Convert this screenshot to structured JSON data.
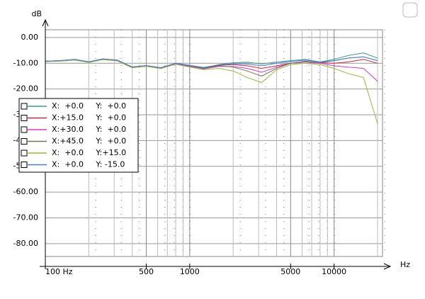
{
  "chart_data": {
    "type": "line",
    "y_label": "dB",
    "x_label": "Hz",
    "xscale": "log",
    "grid": true,
    "xlim": [
      100,
      20000
    ],
    "ylim": [
      -85,
      3
    ],
    "xticks": [
      {
        "value": 100,
        "label": "100 Hz"
      },
      500,
      1000,
      5000,
      10000
    ],
    "xminor": [
      200,
      300,
      400,
      600,
      700,
      800,
      900,
      2000,
      3000,
      4000,
      6000,
      7000,
      8000,
      9000,
      20000
    ],
    "yticks": [
      {
        "value": 0,
        "label": "0.00"
      },
      {
        "value": -10,
        "label": "-10.00"
      },
      {
        "value": -20,
        "label": "-20.00"
      },
      {
        "value": -30,
        "label": "-30.00"
      },
      {
        "value": -40,
        "label": "-40.00"
      },
      {
        "value": -50,
        "label": "-50.00"
      },
      {
        "value": -60,
        "label": "-60.00"
      },
      {
        "value": -70,
        "label": "-70.00"
      },
      {
        "value": -80,
        "label": "-80.00"
      }
    ],
    "x": [
      100,
      125,
      160,
      200,
      250,
      315,
      400,
      500,
      630,
      800,
      1000,
      1250,
      1600,
      2000,
      2500,
      3150,
      4000,
      5000,
      6300,
      8000,
      10000,
      12500,
      16000,
      20000
    ],
    "series": [
      {
        "name": "X:  +0.0     Y:  +0.0",
        "color": "#3c9a96",
        "values": [
          -9.2,
          -9,
          -8.5,
          -9.5,
          -8.3,
          -8.8,
          -11.5,
          -11,
          -11.8,
          -10,
          -10.8,
          -11.8,
          -10.5,
          -9.8,
          -9.6,
          -10.3,
          -9.5,
          -9,
          -8.5,
          -9.5,
          -8.5,
          -7,
          -6,
          -8
        ]
      },
      {
        "name": "X:+15.0     Y:  +0.0",
        "color": "#c8283c",
        "values": [
          -9.2,
          -9,
          -8.6,
          -9.5,
          -8.4,
          -8.9,
          -11.6,
          -11,
          -11.9,
          -10.1,
          -11,
          -12,
          -10.8,
          -10.5,
          -11,
          -12,
          -11,
          -10,
          -9.3,
          -9.8,
          -10,
          -9.5,
          -8.5,
          -10
        ]
      },
      {
        "name": "X:+30.0     Y:  +0.0",
        "color": "#d838c8",
        "values": [
          -9.3,
          -9.1,
          -8.7,
          -9.6,
          -8.5,
          -9,
          -11.7,
          -11.1,
          -12,
          -10.2,
          -11.2,
          -12.2,
          -11.2,
          -11.3,
          -12,
          -13.5,
          -11.5,
          -10,
          -9.5,
          -10,
          -11,
          -11.5,
          -12,
          -17
        ]
      },
      {
        "name": "X:+45.0     Y:  +0.0",
        "color": "#6a7a52",
        "values": [
          -9.2,
          -9,
          -8.6,
          -9.5,
          -8.4,
          -8.8,
          -11.5,
          -11,
          -11.8,
          -10,
          -11,
          -12,
          -11,
          -11.5,
          -13,
          -15,
          -12,
          -10,
          -9.2,
          -9.8,
          -9,
          -8,
          -7.5,
          -9
        ]
      },
      {
        "name": "X:  +0.0     Y:+15.0",
        "color": "#9ab83c",
        "values": [
          -9.4,
          -9.2,
          -8.8,
          -9.7,
          -8.6,
          -9.1,
          -11.8,
          -11.2,
          -12.1,
          -10.4,
          -11.5,
          -12.5,
          -12,
          -13,
          -15.5,
          -17.5,
          -12.5,
          -10.5,
          -10,
          -10.5,
          -12,
          -14,
          -15.5,
          -33.5
        ]
      },
      {
        "name": "X:  +0.0     Y: -15.0",
        "color": "#4a7ad8",
        "values": [
          -9.2,
          -9,
          -8.5,
          -9.4,
          -8.3,
          -8.8,
          -11.4,
          -10.9,
          -11.7,
          -10,
          -10.8,
          -11.6,
          -10.6,
          -10.2,
          -10.3,
          -11,
          -10,
          -9.3,
          -8.8,
          -9.5,
          -9,
          -8,
          -7.5,
          -9
        ]
      }
    ]
  }
}
